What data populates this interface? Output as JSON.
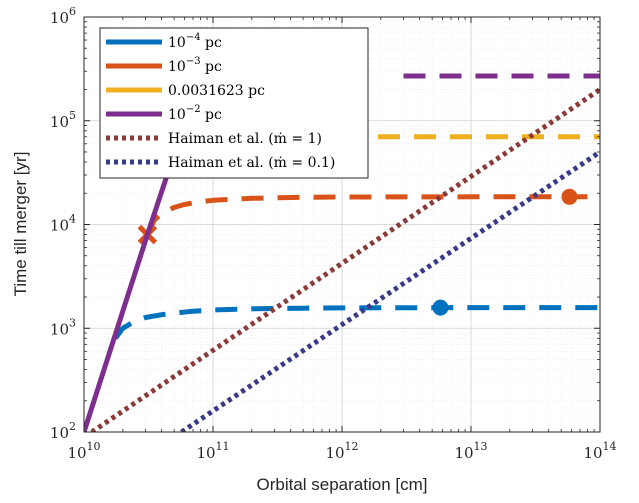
{
  "chart_data": {
    "type": "line",
    "xlabel": "Orbital separation [cm]",
    "ylabel": "Time till merger [yr]",
    "xscale": "log",
    "yscale": "log",
    "xlim": [
      10000000000.0,
      100000000000000.0
    ],
    "ylim": [
      100,
      1000000
    ],
    "grid": true,
    "legend_position": "top-left",
    "x_ticks": [
      {
        "base": "10",
        "exp": "10"
      },
      {
        "base": "10",
        "exp": "11"
      },
      {
        "base": "10",
        "exp": "12"
      },
      {
        "base": "10",
        "exp": "13"
      },
      {
        "base": "10",
        "exp": "14"
      }
    ],
    "y_ticks": [
      {
        "base": "10",
        "exp": "2"
      },
      {
        "base": "10",
        "exp": "3"
      },
      {
        "base": "10",
        "exp": "4"
      },
      {
        "base": "10",
        "exp": "5"
      },
      {
        "base": "10",
        "exp": "6"
      }
    ],
    "series": [
      {
        "name": "10^{-4} pc",
        "legend_base": "10",
        "legend_sup": "−4",
        "legend_unit": " pc",
        "color": "#0072BD",
        "style": "dashed",
        "x": [
          17500000000.0,
          20000000000.0,
          25000000000.0,
          30000000000.0,
          40000000000.0,
          50000000000.0,
          70000000000.0,
          100000000000.0,
          200000000000.0,
          500000000000.0,
          1000000000000.0,
          10000000000000.0,
          100000000000000.0
        ],
        "y": [
          800,
          1000,
          1180,
          1270,
          1350,
          1400,
          1460,
          1500,
          1540,
          1560,
          1570,
          1580,
          1580
        ],
        "marker": {
          "shape": "circle",
          "x": 5800000000000.0,
          "y": 1580
        }
      },
      {
        "name": "10^{-3} pc",
        "legend_base": "10",
        "legend_sup": "−3",
        "legend_unit": " pc",
        "color": "#D95319",
        "style": "dashed",
        "x": [
          31000000000.0,
          35000000000.0,
          40000000000.0,
          50000000000.0,
          60000000000.0,
          80000000000.0,
          100000000000.0,
          200000000000.0,
          500000000000.0,
          1000000000000.0,
          10000000000000.0,
          100000000000000.0
        ],
        "y": [
          8000,
          11000,
          12800,
          14600,
          15600,
          16600,
          17100,
          17900,
          18300,
          18400,
          18500,
          18500
        ],
        "marker": {
          "shape": "circle",
          "x": 58000000000000.0,
          "y": 18500
        },
        "special_marker": {
          "shape": "cross",
          "x": 31000000000.0,
          "y": 8000
        }
      },
      {
        "name": "0.0031623 pc",
        "legend_base": "0.0031623",
        "legend_sup": "",
        "legend_unit": " pc",
        "color": "#EDB120",
        "style": "dashed",
        "x": [
          1000000000000.0,
          100000000000000.0
        ],
        "y": [
          70000,
          70000
        ]
      },
      {
        "name": "10^{-2} pc",
        "legend_base": "10",
        "legend_sup": "−2",
        "legend_unit": " pc",
        "color": "#7E2F8E",
        "style": "solid",
        "x": [
          10000000000.0,
          31000000000.0,
          50000000000.0
        ],
        "y": [
          100,
          8000,
          48000
        ],
        "extra_segment": {
          "style": "dashed",
          "x": [
            3000000000000.0,
            100000000000000.0
          ],
          "y": [
            270000,
            270000
          ]
        }
      },
      {
        "name": "Haiman et al. (ṁ = 1)",
        "legend_base": "Haiman et al. ",
        "legend_sup": "",
        "legend_unit": "(ṁ = 1)",
        "color": "#8B3A3A",
        "style": "dotted",
        "x": [
          11500000000.0,
          100000000000000.0
        ],
        "y": [
          100,
          200000
        ]
      },
      {
        "name": "Haiman et al. (ṁ = 0.1)",
        "legend_base": "Haiman et al. ",
        "legend_sup": "",
        "legend_unit": "(ṁ = 0.1)",
        "color": "#3A3A8B",
        "style": "dotted",
        "x": [
          57000000000.0,
          100000000000000.0
        ],
        "y": [
          100,
          50000
        ]
      }
    ]
  }
}
